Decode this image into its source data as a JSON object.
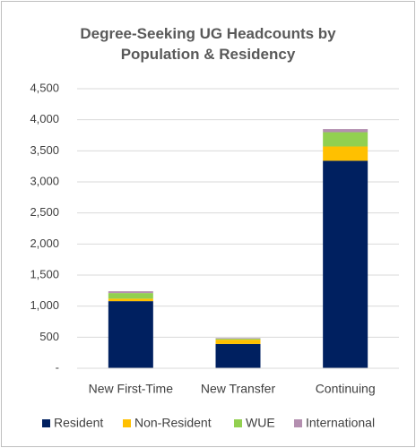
{
  "chart_data": {
    "type": "stacked_bar",
    "title": "Degree-Seeking UG Headcounts by Population & Residency",
    "categories": [
      "New First-Time",
      "New Transfer",
      "Continuing"
    ],
    "series": [
      {
        "name": "Resident",
        "color": "#002060",
        "values": [
          1080,
          390,
          3340
        ]
      },
      {
        "name": "Non-Resident",
        "color": "#ffc000",
        "values": [
          40,
          70,
          230
        ]
      },
      {
        "name": "WUE",
        "color": "#92d050",
        "values": [
          90,
          15,
          230
        ]
      },
      {
        "name": "International",
        "color": "#b48fb0",
        "values": [
          30,
          10,
          50
        ]
      }
    ],
    "ylim": [
      0,
      4500
    ],
    "yticks": [
      {
        "value": 0,
        "label": "-"
      },
      500,
      {
        "value": 1000,
        "label": "1,000"
      },
      {
        "value": 1500,
        "label": "1,500"
      },
      {
        "value": 2000,
        "label": "2,000"
      },
      {
        "value": 2500,
        "label": "2,500"
      },
      {
        "value": 3000,
        "label": "3,000"
      },
      {
        "value": 3500,
        "label": "3,500"
      },
      {
        "value": 4000,
        "label": "4,000"
      },
      {
        "value": 4500,
        "label": "4,500"
      }
    ],
    "grid": true,
    "legend": "bottom"
  }
}
